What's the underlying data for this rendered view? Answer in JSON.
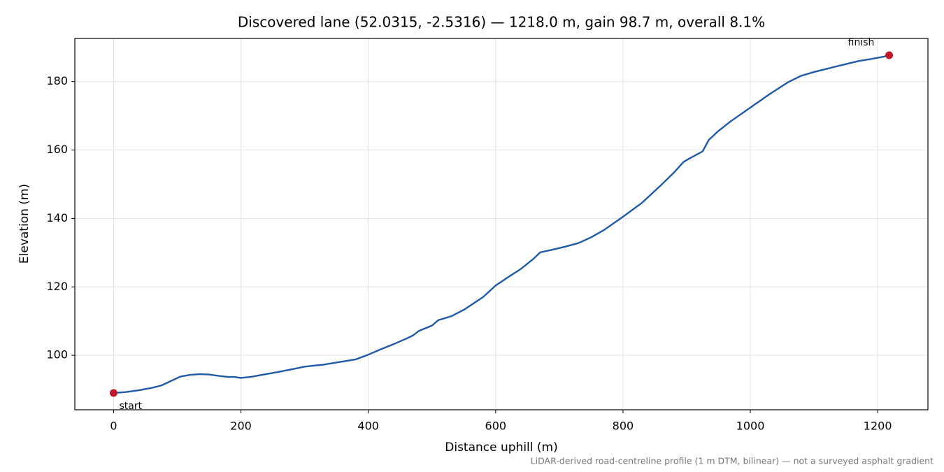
{
  "chart_data": {
    "type": "line",
    "title": "Discovered lane (52.0315, -2.5316) — 1218.0 m, gain 98.7 m, overall 8.1%",
    "x_label": "Distance uphill (m)",
    "y_label": "Elevation (m)",
    "footnote": "LiDAR-derived road-centreline profile (1 m DTM, bilinear) — not a surveyed asphalt gradient",
    "start_label": "start",
    "finish_label": "finish",
    "xlim": [
      -60.9,
      1278.9
    ],
    "ylim": [
      84.1,
      192.6
    ],
    "xticks": [
      0,
      200,
      400,
      600,
      800,
      1000,
      1200
    ],
    "yticks": [
      100,
      120,
      140,
      160,
      180
    ],
    "grid": true,
    "series": [
      {
        "color": "#1f5aa8",
        "x": [
          0,
          20,
          40,
          60,
          75,
          90,
          105,
          120,
          135,
          150,
          165,
          180,
          190,
          200,
          215,
          230,
          260,
          290,
          300,
          330,
          360,
          380,
          400,
          420,
          440,
          460,
          470,
          480,
          500,
          510,
          530,
          550,
          580,
          600,
          620,
          640,
          660,
          670,
          690,
          710,
          730,
          750,
          770,
          800,
          830,
          860,
          880,
          895,
          905,
          915,
          925,
          935,
          950,
          970,
          1000,
          1030,
          1060,
          1080,
          1100,
          1115,
          1130,
          1150,
          1170,
          1190,
          1210,
          1218
        ],
        "values": [
          89.0,
          89.3,
          89.8,
          90.5,
          91.2,
          92.5,
          93.8,
          94.3,
          94.5,
          94.4,
          94.0,
          93.7,
          93.7,
          93.4,
          93.7,
          94.2,
          95.2,
          96.3,
          96.7,
          97.3,
          98.2,
          98.8,
          100.2,
          101.8,
          103.3,
          104.9,
          105.8,
          107.2,
          108.7,
          110.3,
          111.4,
          113.3,
          117.0,
          120.4,
          122.9,
          125.3,
          128.3,
          130.1,
          130.9,
          131.8,
          132.8,
          134.5,
          136.6,
          140.5,
          144.6,
          149.8,
          153.4,
          156.5,
          157.6,
          158.6,
          159.6,
          163.0,
          165.6,
          168.5,
          172.4,
          176.3,
          179.9,
          181.7,
          182.8,
          183.5,
          184.2,
          185.1,
          186.0,
          186.6,
          187.3,
          187.7
        ]
      },
      {
        "color": "#c0182a",
        "x": [
          0,
          1218
        ],
        "values": [
          89.0,
          187.7
        ]
      }
    ]
  }
}
